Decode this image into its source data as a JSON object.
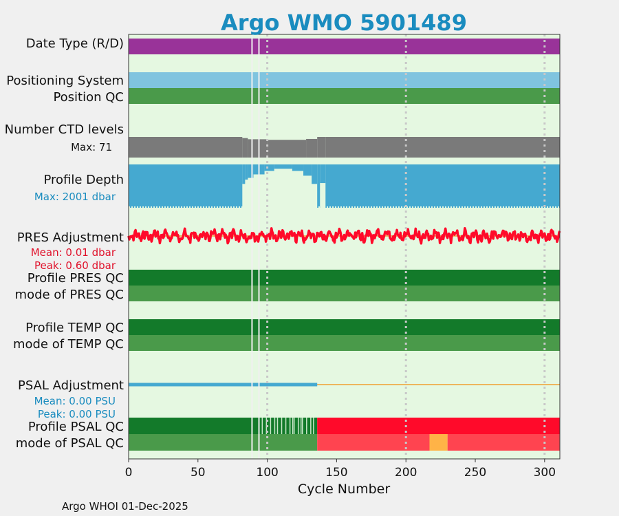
{
  "chart_data": {
    "type": "bar",
    "title": "Argo WMO 5901489",
    "xlabel": "Cycle Number",
    "xlim": [
      0,
      311
    ],
    "x_ticks": [
      "0",
      "50",
      "100",
      "150",
      "200",
      "250",
      "300"
    ],
    "x_tick_values": [
      0,
      50,
      100,
      150,
      200,
      250,
      300
    ],
    "gap_cycles": [
      89,
      94
    ],
    "rows": {
      "date_type": {
        "label": "Date Type (R/D)",
        "color": "#993399"
      },
      "positioning": {
        "label": "Positioning System",
        "color": "#80c4df"
      },
      "position_qc": {
        "label": "Position QC",
        "color": "#4a9a4a"
      },
      "ctd_levels": {
        "label": "Number CTD levels",
        "max_text": "Max: 71",
        "max": 71,
        "color": "#7a7a7a",
        "segments": [
          {
            "from": 0,
            "to": 82,
            "value": 71
          },
          {
            "from": 82,
            "to": 86,
            "value": 67
          },
          {
            "from": 86,
            "to": 100,
            "value": 63
          },
          {
            "from": 100,
            "to": 128,
            "value": 61
          },
          {
            "from": 128,
            "to": 136,
            "value": 64
          },
          {
            "from": 136,
            "to": 142,
            "value": 71
          },
          {
            "from": 142,
            "to": 311,
            "value": 71
          }
        ]
      },
      "profile_depth": {
        "label": "Profile Depth",
        "max_text": "Max: 2001 dbar",
        "max": 2001,
        "color": "#45a9d0",
        "segments": [
          {
            "from": 0,
            "to": 82,
            "value": 2001
          },
          {
            "from": 82,
            "to": 84,
            "value": 900
          },
          {
            "from": 84,
            "to": 86,
            "value": 700
          },
          {
            "from": 86,
            "to": 90,
            "value": 620
          },
          {
            "from": 90,
            "to": 98,
            "value": 460
          },
          {
            "from": 98,
            "to": 105,
            "value": 300
          },
          {
            "from": 105,
            "to": 118,
            "value": 200
          },
          {
            "from": 118,
            "to": 126,
            "value": 300
          },
          {
            "from": 126,
            "to": 132,
            "value": 520
          },
          {
            "from": 132,
            "to": 136,
            "value": 900
          },
          {
            "from": 136,
            "to": 138,
            "value": 2001
          },
          {
            "from": 138,
            "to": 142,
            "value": 860
          },
          {
            "from": 142,
            "to": 311,
            "value": 2001
          }
        ]
      },
      "pres_adj": {
        "label": "PRES Adjustment",
        "mean_text": "Mean: 0.01 dbar",
        "peak_text": "Peak: 0.60 dbar",
        "mean": 0.01,
        "peak": 0.6,
        "color": "#ff0a2a",
        "line_color": "#f0a030"
      },
      "profile_pres_qc": {
        "label": "Profile PRES QC",
        "color": "#137a2a"
      },
      "mode_pres_qc": {
        "label": "mode of PRES QC",
        "color": "#4a9a4a"
      },
      "profile_temp_qc": {
        "label": "Profile TEMP QC",
        "color": "#137a2a"
      },
      "mode_temp_qc": {
        "label": "mode of TEMP QC",
        "color": "#4a9a4a"
      },
      "psal_adj": {
        "label": "PSAL Adjustment",
        "mean_text": "Mean: 0.00 PSU",
        "peak_text": "Peak: 0.00 PSU",
        "mean": 0.0,
        "peak": 0.0,
        "color": "#45a9d0",
        "line_color": "#f0a030",
        "adjusted_until": 136
      },
      "profile_psal_qc": {
        "label": "Profile PSAL QC",
        "segments": [
          {
            "from": 0,
            "to": 95,
            "color": "#137a2a"
          },
          {
            "from": 95,
            "to": 136,
            "color": "#137a2a"
          },
          {
            "from": 136,
            "to": 311,
            "color": "#ff0a2a"
          }
        ],
        "light_cycles": [
          96,
          99,
          102,
          105,
          107,
          110,
          113,
          116,
          118,
          119,
          122,
          124,
          125,
          128,
          131,
          133
        ],
        "light_color": "#c8e6c8"
      },
      "mode_psal_qc": {
        "label": "mode of PSAL QC",
        "segments": [
          {
            "from": 0,
            "to": 136,
            "color": "#4a9a4a"
          },
          {
            "from": 136,
            "to": 217,
            "color": "#ff4450"
          },
          {
            "from": 217,
            "to": 230,
            "color": "#ffb347"
          },
          {
            "from": 230,
            "to": 311,
            "color": "#ff4450"
          }
        ]
      }
    }
  },
  "footer": "Argo WHOI 01-Dec-2025",
  "colors": {
    "plot_bg": "#e5f8e1",
    "grid": "#c8c8c8",
    "gap": "#f0f0f0"
  }
}
